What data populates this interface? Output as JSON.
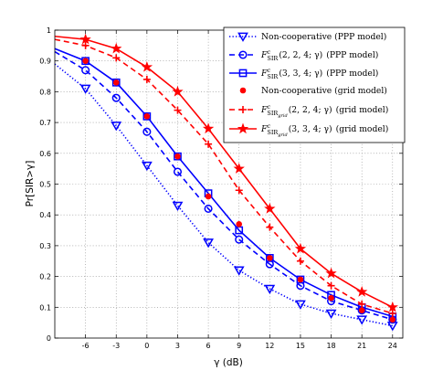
{
  "chart_data": {
    "type": "line",
    "xlabel": "γ (dB)",
    "ylabel": "Pr[SIR>γ]",
    "xlim": [
      -9,
      25
    ],
    "ylim": [
      0,
      1
    ],
    "x_ticks": [
      "-6",
      "-3",
      "0",
      "3",
      "6",
      "9",
      "12",
      "15",
      "18",
      "21",
      "24"
    ],
    "y_ticks": [
      "0",
      "0.1",
      "0.2",
      "0.3",
      "0.4",
      "0.5",
      "0.6",
      "0.7",
      "0.8",
      "0.9",
      "1"
    ],
    "grid": true,
    "legend_position": "top-right",
    "x": [
      -9,
      -6,
      -3,
      0,
      3,
      6,
      9,
      12,
      15,
      18,
      21,
      24
    ],
    "series": [
      {
        "name": "Non-cooperative (PPP model)",
        "color": "#0000ff",
        "line": "dotted",
        "marker": "triangle-down",
        "values": [
          0.89,
          0.81,
          0.69,
          0.56,
          0.43,
          0.31,
          0.22,
          0.16,
          0.11,
          0.08,
          0.06,
          0.04
        ]
      },
      {
        "name": "F^c_SIR(2, 2, 4; γ) (PPP model)",
        "color": "#0000ff",
        "line": "dashed",
        "marker": "circle-open",
        "values": [
          0.93,
          0.87,
          0.78,
          0.67,
          0.54,
          0.42,
          0.32,
          0.24,
          0.17,
          0.12,
          0.09,
          0.06
        ]
      },
      {
        "name": "F^c_SIR(3, 3, 4; γ) (PPP model)",
        "color": "#0000ff",
        "line": "solid",
        "marker": "square-open",
        "values": [
          0.94,
          0.9,
          0.83,
          0.72,
          0.59,
          0.47,
          0.35,
          0.26,
          0.19,
          0.14,
          0.1,
          0.07
        ]
      },
      {
        "name": "Non-cooperative (grid model)",
        "color": "#ff0000",
        "line": "none",
        "marker": "circle-filled",
        "values": [
          0.94,
          0.9,
          0.83,
          0.72,
          0.59,
          0.46,
          0.37,
          0.26,
          0.19,
          0.13,
          0.09,
          0.06
        ]
      },
      {
        "name": "F^c_SIR_grid(2, 2, 4; γ) (grid model)",
        "color": "#ff0000",
        "line": "dashed",
        "marker": "plus",
        "values": [
          0.97,
          0.95,
          0.91,
          0.84,
          0.74,
          0.63,
          0.48,
          0.36,
          0.25,
          0.17,
          0.11,
          0.08
        ]
      },
      {
        "name": "F^c_SIR_grid(3, 3, 4; γ) (grid model)",
        "color": "#ff0000",
        "line": "solid",
        "marker": "star",
        "values": [
          0.98,
          0.97,
          0.94,
          0.88,
          0.8,
          0.68,
          0.55,
          0.42,
          0.29,
          0.21,
          0.15,
          0.1
        ]
      }
    ]
  },
  "legend": [
    {
      "main": "Non-cooperative (PPP model)"
    },
    {
      "main": "F",
      "sup": "c",
      "sub": "SIR",
      "args": "(2, 2, 4; γ)",
      "tail": "(PPP model)"
    },
    {
      "main": "F",
      "sup": "c",
      "sub": "SIR",
      "args": "(3, 3, 4; γ)",
      "tail": "(PPP model)"
    },
    {
      "main": "Non-cooperative (grid model)"
    },
    {
      "main": "F",
      "sup": "c",
      "sub": "SIR",
      "subsub": "grid",
      "args": "(2, 2, 4; γ)",
      "tail": "(grid model)"
    },
    {
      "main": "F",
      "sup": "c",
      "sub": "SIR",
      "subsub": "grid",
      "args": "(3, 3, 4; γ)",
      "tail": "(grid model)"
    }
  ]
}
